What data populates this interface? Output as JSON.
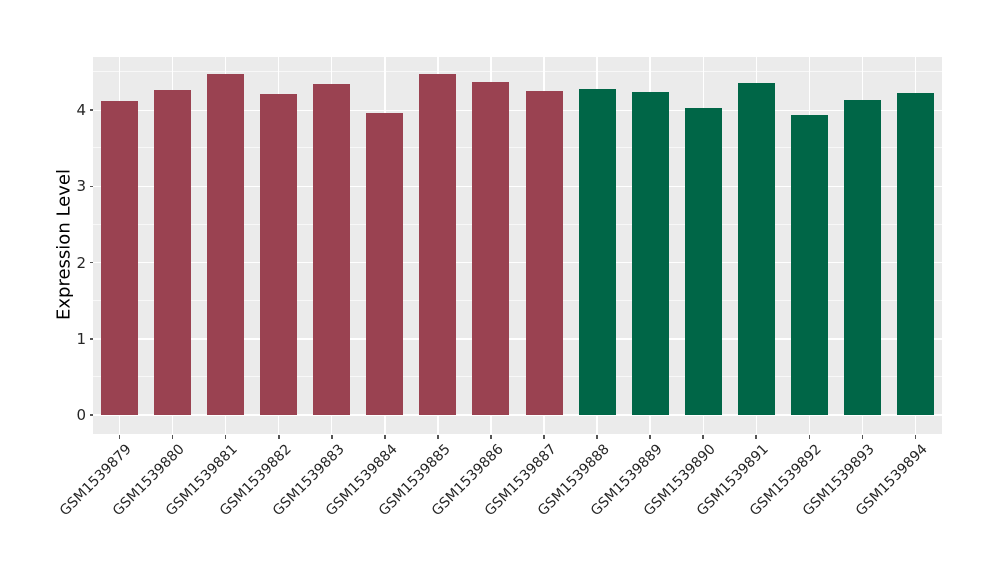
{
  "figure": {
    "background_color": "#FFFFFF"
  },
  "chart_data": {
    "type": "bar",
    "title": "",
    "xlabel": "",
    "ylabel": "Expression Level",
    "ylim": [
      -0.25,
      4.7
    ],
    "y_ticks": [
      0,
      1,
      2,
      3,
      4
    ],
    "y_minor_ticks": [
      0.5,
      1.5,
      2.5,
      3.5,
      4.5
    ],
    "grid": "major and minor white horizontal lines, white vertical lines at category centers, on gray panel",
    "legend_position": "none",
    "panel_color": "#EBEBEB",
    "grid_color": "#FFFFFF",
    "tick_color": "#555555",
    "axis_text_color": "#262626",
    "groups": {
      "group_a": {
        "color": "#9A4251"
      },
      "group_b": {
        "color": "#006647"
      }
    },
    "bars": [
      {
        "label": "GSM1539879",
        "value": 4.12,
        "group": "group_a"
      },
      {
        "label": "GSM1539880",
        "value": 4.27,
        "group": "group_a"
      },
      {
        "label": "GSM1539881",
        "value": 4.47,
        "group": "group_a"
      },
      {
        "label": "GSM1539882",
        "value": 4.21,
        "group": "group_a"
      },
      {
        "label": "GSM1539883",
        "value": 4.34,
        "group": "group_a"
      },
      {
        "label": "GSM1539884",
        "value": 3.97,
        "group": "group_a"
      },
      {
        "label": "GSM1539885",
        "value": 4.47,
        "group": "group_a"
      },
      {
        "label": "GSM1539886",
        "value": 4.37,
        "group": "group_a"
      },
      {
        "label": "GSM1539887",
        "value": 4.25,
        "group": "group_a"
      },
      {
        "label": "GSM1539888",
        "value": 4.28,
        "group": "group_b"
      },
      {
        "label": "GSM1539889",
        "value": 4.24,
        "group": "group_b"
      },
      {
        "label": "GSM1539890",
        "value": 4.03,
        "group": "group_b"
      },
      {
        "label": "GSM1539891",
        "value": 4.36,
        "group": "group_b"
      },
      {
        "label": "GSM1539892",
        "value": 3.94,
        "group": "group_b"
      },
      {
        "label": "GSM1539893",
        "value": 4.13,
        "group": "group_b"
      },
      {
        "label": "GSM1539894",
        "value": 4.23,
        "group": "group_b"
      }
    ]
  }
}
